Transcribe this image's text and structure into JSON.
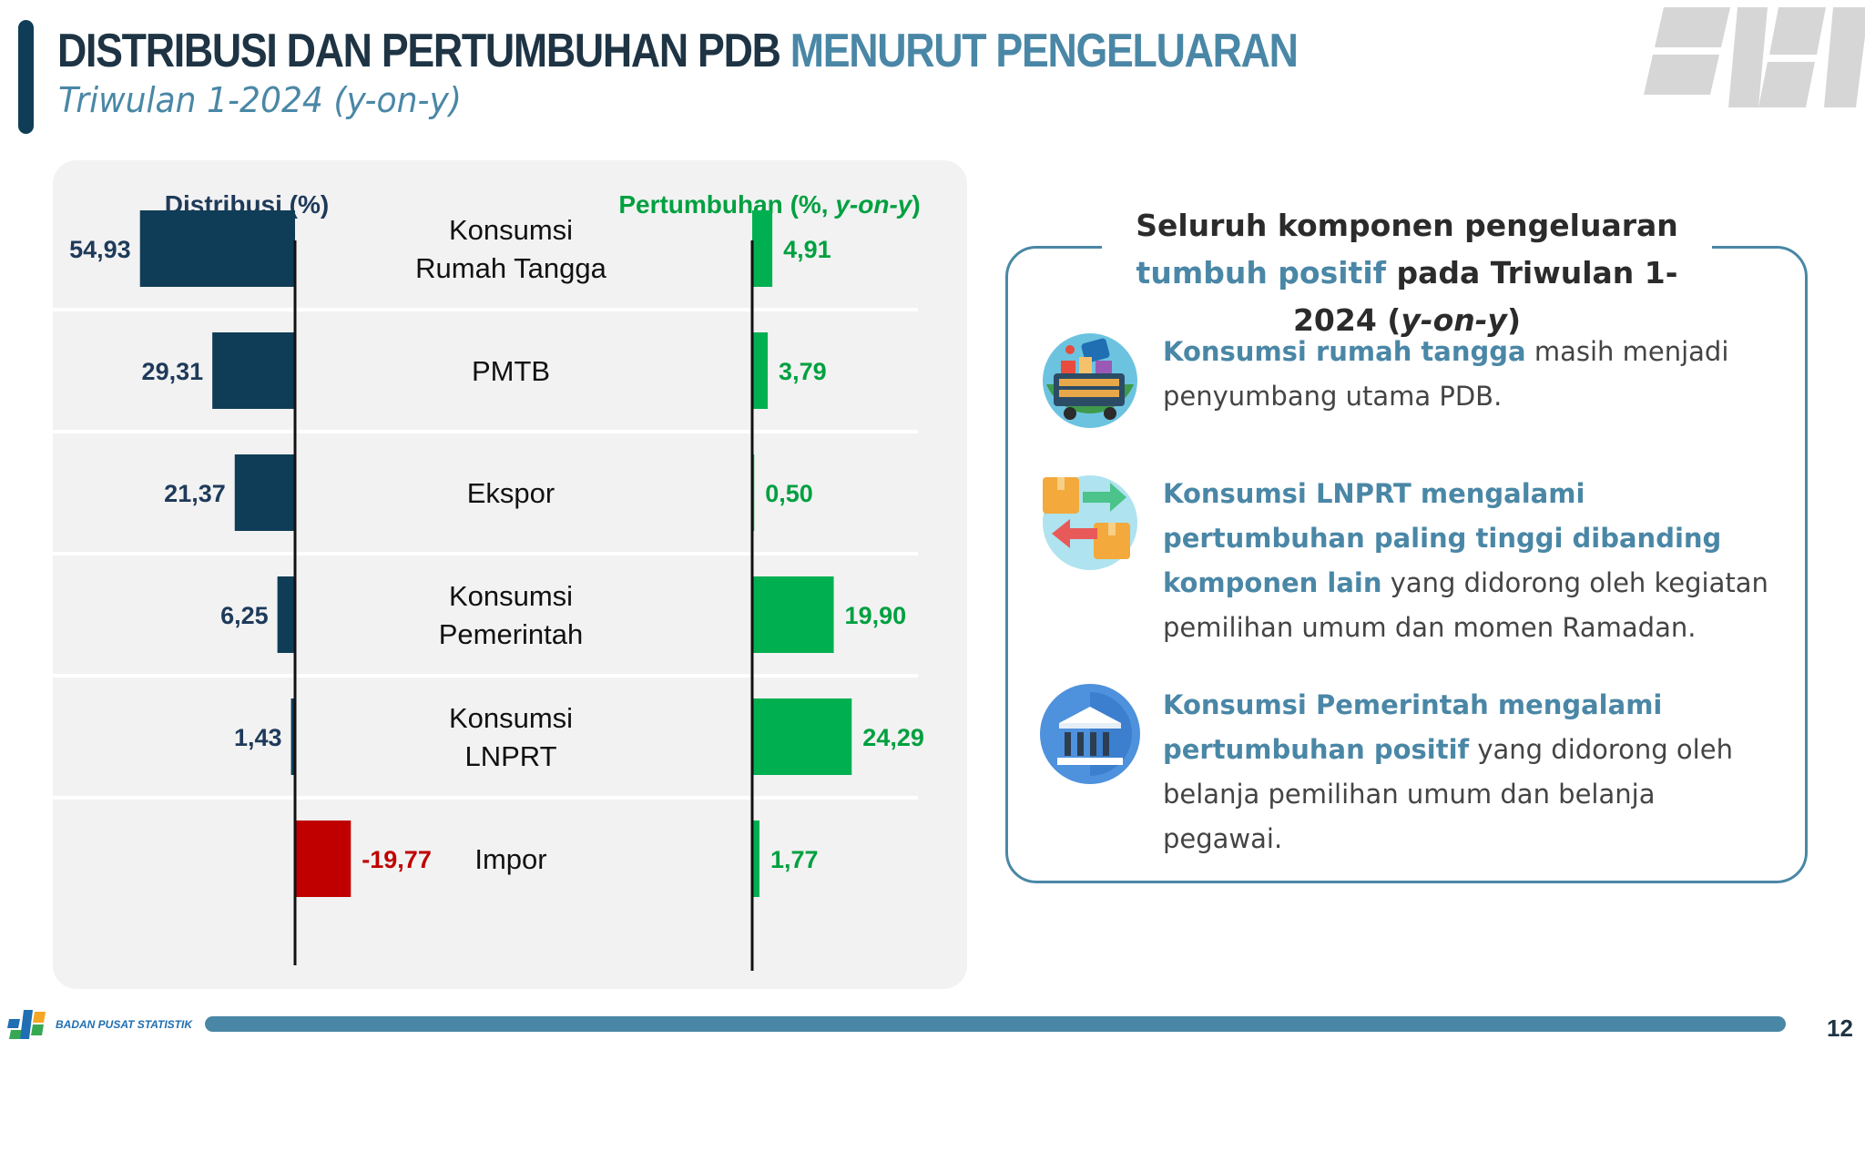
{
  "header": {
    "title_main": "DISTRIBUSI DAN PERTUMBUHAN PDB",
    "title_highlight": "MENURUT PENGELUARAN",
    "subtitle": "Triwulan 1-2024 (y-on-y)"
  },
  "colors": {
    "accent": "#0f3d57",
    "highlight": "#4a87a6",
    "distribusi_bar": "#0f3d57",
    "pertumbuhan_bar": "#00b050",
    "negative_bar": "#c00000"
  },
  "chart_data": {
    "type": "bar",
    "orientation": "horizontal",
    "categories": [
      [
        "Konsumsi",
        "Rumah Tangga"
      ],
      [
        "PMTB"
      ],
      [
        "Ekspor"
      ],
      [
        "Konsumsi",
        "Pemerintah"
      ],
      [
        "Konsumsi",
        "LNPRT"
      ],
      [
        "Impor"
      ]
    ],
    "series": [
      {
        "name": "Distribusi (%)",
        "values": [
          54.93,
          29.31,
          21.37,
          6.25,
          1.43,
          -19.77
        ],
        "labels": [
          "54,93",
          "29,31",
          "21,37",
          "6,25",
          "1,43",
          "-19,77"
        ]
      },
      {
        "name_prefix": "Pertumbuhan (%, ",
        "name_italic": "y-on-y",
        "name_suffix": ")",
        "values": [
          4.91,
          3.79,
          0.5,
          19.9,
          24.29,
          1.77
        ],
        "labels": [
          "4,91",
          "3,79",
          "0,50",
          "19,90",
          "24,29",
          "1,77"
        ]
      }
    ]
  },
  "summary": {
    "heading_parts": [
      {
        "text": "Seluruh komponen pengeluaran ",
        "hl": false
      },
      {
        "text": "tumbuh positif",
        "hl": true
      },
      {
        "text": " pada Triwulan 1-2024 (",
        "hl": false
      },
      {
        "text": "y-on-y",
        "hl": false,
        "italic": true
      },
      {
        "text": ")",
        "hl": false
      }
    ],
    "items": [
      {
        "icon": "shopping-cart-icon",
        "highlight": "Konsumsi rumah tangga",
        "text": " masih menjadi penyumbang utama PDB."
      },
      {
        "icon": "exchange-boxes-icon",
        "highlight": "Konsumsi LNPRT mengalami pertumbuhan paling tinggi dibanding komponen lain",
        "text": " yang didorong oleh kegiatan pemilihan umum dan momen Ramadan."
      },
      {
        "icon": "government-building-icon",
        "highlight": "Konsumsi Pemerintah mengalami pertumbuhan positif",
        "text": " yang didorong oleh belanja pemilihan umum dan belanja pegawai."
      }
    ]
  },
  "footer": {
    "org": "BADAN PUSAT STATISTIK",
    "page": "12"
  }
}
